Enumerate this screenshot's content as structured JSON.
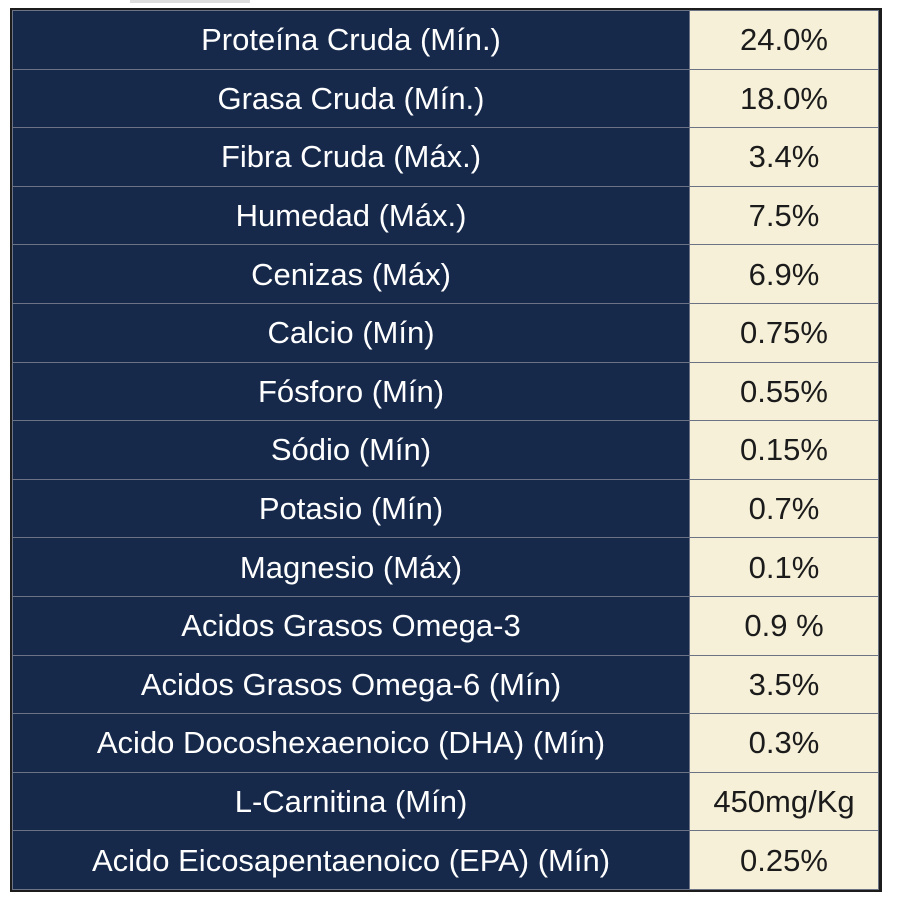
{
  "nutrients": [
    {
      "label": "Proteína Cruda (Mín.)",
      "value": "24.0%"
    },
    {
      "label": "Grasa Cruda (Mín.)",
      "value": "18.0%"
    },
    {
      "label": "Fibra Cruda (Máx.)",
      "value": "3.4%"
    },
    {
      "label": "Humedad (Máx.)",
      "value": "7.5%"
    },
    {
      "label": "Cenizas (Máx)",
      "value": "6.9%"
    },
    {
      "label": "Calcio (Mín)",
      "value": "0.75%"
    },
    {
      "label": "Fósforo (Mín)",
      "value": "0.55%"
    },
    {
      "label": "Sódio (Mín)",
      "value": "0.15%"
    },
    {
      "label": "Potasio (Mín)",
      "value": "0.7%"
    },
    {
      "label": "Magnesio (Máx)",
      "value": "0.1%"
    },
    {
      "label": "Acidos Grasos Omega-3",
      "value": "0.9 %"
    },
    {
      "label": "Acidos Grasos Omega-6 (Mín)",
      "value": "3.5%"
    },
    {
      "label": "Acido Docoshexaenoico (DHA) (Mín)",
      "value": "0.3%"
    },
    {
      "label": "L-Carnitina (Mín)",
      "value": "450mg/Kg"
    },
    {
      "label": "Acido Eicosapentaenoico (EPA) (Mín)",
      "value": "0.25%"
    }
  ],
  "colors": {
    "label_bg": "#16294b",
    "value_bg": "#f6f0d8"
  }
}
